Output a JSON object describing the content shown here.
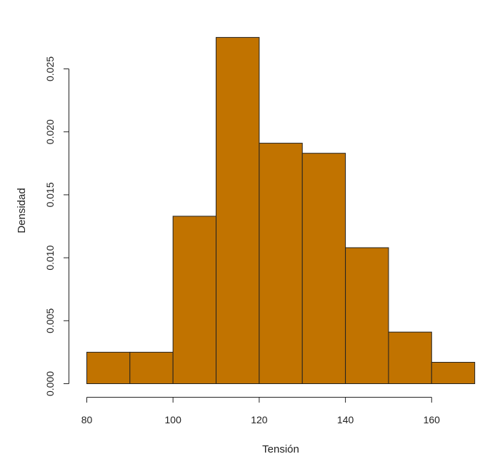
{
  "chart_data": {
    "type": "bar",
    "subtype": "histogram",
    "xlabel": "Tensión",
    "ylabel": "Densidad",
    "bin_edges": [
      80,
      90,
      100,
      110,
      120,
      130,
      140,
      150,
      160,
      170
    ],
    "values": [
      0.0025,
      0.0025,
      0.0133,
      0.0275,
      0.0191,
      0.0183,
      0.0108,
      0.0041,
      0.0017
    ],
    "xlim": [
      80,
      170
    ],
    "ylim": [
      0,
      0.025
    ],
    "x_ticks": [
      80,
      100,
      120,
      140,
      160
    ],
    "x_tick_labels": [
      "80",
      "100",
      "120",
      "140",
      "160"
    ],
    "y_ticks": [
      0,
      0.005,
      0.01,
      0.015,
      0.02,
      0.025
    ],
    "y_tick_labels": [
      "0.000",
      "0.005",
      "0.010",
      "0.015",
      "0.020",
      "0.025"
    ],
    "grid": false,
    "bar_color": "#c17300",
    "edge_color": "#222222"
  }
}
